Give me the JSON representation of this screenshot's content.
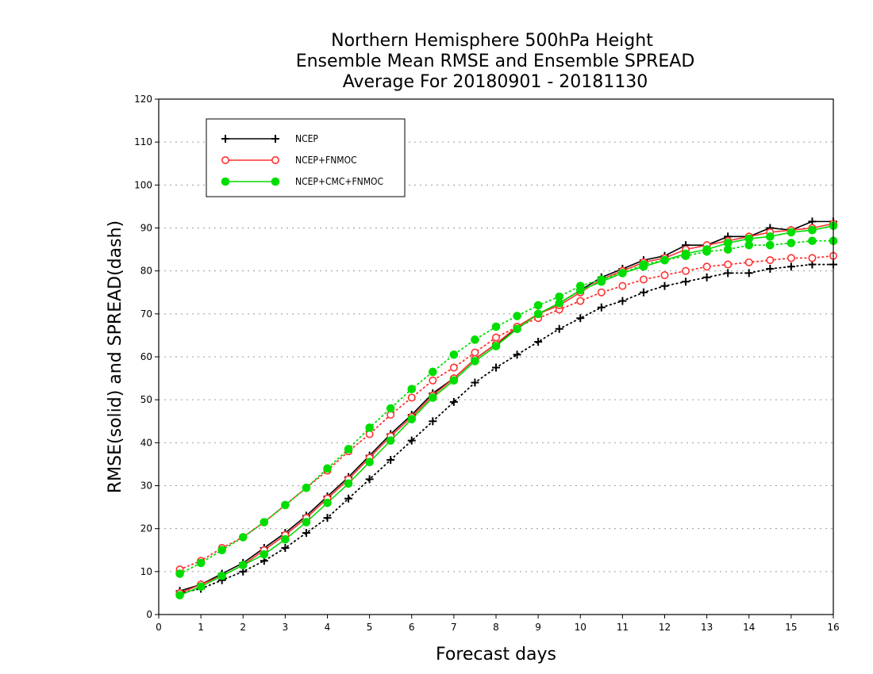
{
  "chart_data": {
    "type": "line",
    "title": [
      "Northern Hemisphere 500hPa Height",
      "Ensemble Mean RMSE and Ensemble SPREAD",
      "Average For 20180901 - 20181130"
    ],
    "xlabel": "Forecast days",
    "ylabel": "RMSE(solid) and SPREAD(dash)",
    "xlim": [
      0,
      16
    ],
    "ylim": [
      0,
      120
    ],
    "xticks": [
      "0",
      "1",
      "2",
      "3",
      "4",
      "5",
      "6",
      "7",
      "8",
      "9",
      "10",
      "11",
      "12",
      "13",
      "14",
      "15",
      "16"
    ],
    "yticks": [
      "0",
      "10",
      "20",
      "30",
      "40",
      "50",
      "60",
      "70",
      "80",
      "90",
      "100",
      "110",
      "120"
    ],
    "grid": true,
    "legend_position": "top-left",
    "x": [
      0.5,
      1,
      1.5,
      2,
      2.5,
      3,
      3.5,
      4,
      4.5,
      5,
      5.5,
      6,
      6.5,
      7,
      7.5,
      8,
      8.5,
      9,
      9.5,
      10,
      10.5,
      11,
      11.5,
      12,
      12.5,
      13,
      13.5,
      14,
      14.5,
      15,
      15.5,
      16
    ],
    "series": [
      {
        "name": "NCEP",
        "color": "#000000",
        "marker": "plus",
        "rmse": [
          5.5,
          7,
          9.5,
          12,
          15.5,
          19,
          23,
          27.5,
          32,
          37,
          42,
          46.5,
          51.5,
          55,
          59.5,
          63,
          66.5,
          70,
          72.5,
          75.5,
          78.5,
          80.5,
          82.5,
          83.5,
          86,
          86,
          88,
          88,
          90,
          89.5,
          91.5,
          91.5
        ],
        "spread": [
          5,
          6,
          8,
          10,
          12.5,
          15.5,
          19,
          22.5,
          27,
          31.5,
          36,
          40.5,
          45,
          49.5,
          54,
          57.5,
          60.5,
          63.5,
          66.5,
          69,
          71.5,
          73,
          75,
          76.5,
          77.5,
          78.5,
          79.5,
          79.5,
          80.5,
          81,
          81.5,
          81.5
        ]
      },
      {
        "name": "NCEP+FNMOC",
        "color": "#ff3030",
        "marker": "open-circle",
        "rmse": [
          5,
          7,
          9,
          11.5,
          15,
          18.5,
          22.5,
          27,
          31.5,
          36.5,
          41.5,
          46,
          51,
          55,
          59.5,
          63,
          67,
          70,
          72,
          75,
          78,
          80,
          82,
          83,
          85,
          86,
          87,
          88,
          89,
          89.5,
          90,
          91
        ],
        "spread": [
          10.5,
          12.5,
          15.5,
          18,
          21.5,
          25.5,
          29.5,
          33.5,
          38,
          42,
          46.5,
          50.5,
          54.5,
          57.5,
          61,
          64.5,
          67,
          69,
          71,
          73,
          75,
          76.5,
          78,
          79,
          80,
          81,
          81.5,
          82,
          82.5,
          83,
          83,
          83.5
        ]
      },
      {
        "name": "NCEP+CMC+FNMOC",
        "color": "#00dd00",
        "marker": "filled-circle",
        "rmse": [
          4.5,
          6.5,
          9,
          11.5,
          14,
          17.5,
          21.5,
          26,
          30.5,
          35.5,
          40.5,
          45.5,
          50.5,
          54.5,
          59,
          62.5,
          66.5,
          70,
          72.5,
          75.5,
          77.5,
          79.5,
          81,
          82.5,
          84,
          85,
          86.5,
          87.5,
          88,
          89,
          89.5,
          90.5
        ],
        "spread": [
          9.5,
          12,
          15,
          18,
          21.5,
          25.5,
          29.5,
          34,
          38.5,
          43.5,
          48,
          52.5,
          56.5,
          60.5,
          64,
          67,
          69.5,
          72,
          74,
          76.5,
          78,
          79.5,
          81.5,
          82.5,
          83.5,
          84.5,
          85,
          86,
          86,
          86.5,
          87,
          87
        ]
      }
    ]
  }
}
